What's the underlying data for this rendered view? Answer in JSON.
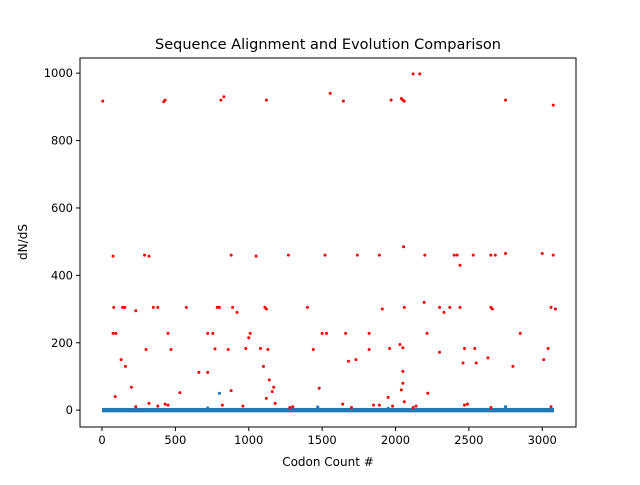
{
  "chart_data": {
    "type": "scatter",
    "title": "Sequence Alignment and Evolution Comparison",
    "xlabel": "Codon Count #",
    "ylabel": "dN/dS",
    "xlim": [
      -150,
      3230
    ],
    "ylim": [
      -50,
      1045
    ],
    "xticks": [
      0,
      500,
      1000,
      1500,
      2000,
      2500,
      3000
    ],
    "yticks": [
      0,
      200,
      400,
      600,
      800,
      1000
    ],
    "grid": false,
    "colors": {
      "baseline": "#1f77b4",
      "highlight": "#ff0000"
    },
    "baseline_series": {
      "x_start": 0,
      "x_end": 3080,
      "y_typical": 0,
      "outliers": [
        {
          "x": 800,
          "y": 50
        },
        {
          "x": 1470,
          "y": 9
        },
        {
          "x": 2750,
          "y": 10
        },
        {
          "x": 720,
          "y": 6
        },
        {
          "x": 1950,
          "y": 5
        }
      ]
    },
    "highlight_points": [
      {
        "x": 5,
        "y": 917
      },
      {
        "x": 420,
        "y": 915
      },
      {
        "x": 430,
        "y": 920
      },
      {
        "x": 810,
        "y": 920
      },
      {
        "x": 830,
        "y": 930
      },
      {
        "x": 1120,
        "y": 920
      },
      {
        "x": 1555,
        "y": 940
      },
      {
        "x": 1645,
        "y": 917
      },
      {
        "x": 1970,
        "y": 920
      },
      {
        "x": 2040,
        "y": 925
      },
      {
        "x": 2050,
        "y": 920
      },
      {
        "x": 2060,
        "y": 917
      },
      {
        "x": 2120,
        "y": 998
      },
      {
        "x": 2165,
        "y": 998
      },
      {
        "x": 2750,
        "y": 920
      },
      {
        "x": 3075,
        "y": 905
      },
      {
        "x": 75,
        "y": 457
      },
      {
        "x": 290,
        "y": 460
      },
      {
        "x": 320,
        "y": 457
      },
      {
        "x": 880,
        "y": 460
      },
      {
        "x": 1050,
        "y": 457
      },
      {
        "x": 1270,
        "y": 460
      },
      {
        "x": 1520,
        "y": 460
      },
      {
        "x": 1740,
        "y": 460
      },
      {
        "x": 1890,
        "y": 460
      },
      {
        "x": 2055,
        "y": 485
      },
      {
        "x": 2200,
        "y": 460
      },
      {
        "x": 2400,
        "y": 460
      },
      {
        "x": 2420,
        "y": 460
      },
      {
        "x": 2440,
        "y": 430
      },
      {
        "x": 2530,
        "y": 460
      },
      {
        "x": 2650,
        "y": 460
      },
      {
        "x": 2680,
        "y": 460
      },
      {
        "x": 2750,
        "y": 465
      },
      {
        "x": 3000,
        "y": 465
      },
      {
        "x": 3075,
        "y": 460
      },
      {
        "x": 80,
        "y": 305
      },
      {
        "x": 140,
        "y": 305
      },
      {
        "x": 155,
        "y": 305
      },
      {
        "x": 230,
        "y": 295
      },
      {
        "x": 350,
        "y": 305
      },
      {
        "x": 380,
        "y": 305
      },
      {
        "x": 575,
        "y": 305
      },
      {
        "x": 785,
        "y": 305
      },
      {
        "x": 800,
        "y": 305
      },
      {
        "x": 890,
        "y": 305
      },
      {
        "x": 920,
        "y": 290
      },
      {
        "x": 1110,
        "y": 305
      },
      {
        "x": 1120,
        "y": 300
      },
      {
        "x": 1400,
        "y": 305
      },
      {
        "x": 1910,
        "y": 300
      },
      {
        "x": 2060,
        "y": 305
      },
      {
        "x": 2195,
        "y": 320
      },
      {
        "x": 2300,
        "y": 305
      },
      {
        "x": 2330,
        "y": 290
      },
      {
        "x": 2370,
        "y": 305
      },
      {
        "x": 2440,
        "y": 305
      },
      {
        "x": 2650,
        "y": 305
      },
      {
        "x": 2660,
        "y": 300
      },
      {
        "x": 3060,
        "y": 305
      },
      {
        "x": 3090,
        "y": 300
      },
      {
        "x": 75,
        "y": 228
      },
      {
        "x": 95,
        "y": 228
      },
      {
        "x": 450,
        "y": 228
      },
      {
        "x": 720,
        "y": 228
      },
      {
        "x": 755,
        "y": 228
      },
      {
        "x": 1010,
        "y": 228
      },
      {
        "x": 1500,
        "y": 228
      },
      {
        "x": 1530,
        "y": 228
      },
      {
        "x": 1660,
        "y": 228
      },
      {
        "x": 1820,
        "y": 228
      },
      {
        "x": 2215,
        "y": 228
      },
      {
        "x": 2850,
        "y": 228
      },
      {
        "x": 300,
        "y": 180
      },
      {
        "x": 470,
        "y": 180
      },
      {
        "x": 770,
        "y": 182
      },
      {
        "x": 860,
        "y": 180
      },
      {
        "x": 980,
        "y": 183
      },
      {
        "x": 1080,
        "y": 183
      },
      {
        "x": 1130,
        "y": 180
      },
      {
        "x": 1440,
        "y": 180
      },
      {
        "x": 1820,
        "y": 180
      },
      {
        "x": 1960,
        "y": 183
      },
      {
        "x": 2030,
        "y": 195
      },
      {
        "x": 2050,
        "y": 185
      },
      {
        "x": 2300,
        "y": 172
      },
      {
        "x": 2470,
        "y": 183
      },
      {
        "x": 2540,
        "y": 183
      },
      {
        "x": 3040,
        "y": 183
      },
      {
        "x": 130,
        "y": 150
      },
      {
        "x": 1680,
        "y": 145
      },
      {
        "x": 1730,
        "y": 150
      },
      {
        "x": 2460,
        "y": 140
      },
      {
        "x": 2550,
        "y": 140
      },
      {
        "x": 2630,
        "y": 155
      },
      {
        "x": 3010,
        "y": 150
      },
      {
        "x": 160,
        "y": 130
      },
      {
        "x": 1000,
        "y": 215
      },
      {
        "x": 2800,
        "y": 130
      },
      {
        "x": 2050,
        "y": 115
      },
      {
        "x": 660,
        "y": 112
      },
      {
        "x": 720,
        "y": 112
      },
      {
        "x": 1100,
        "y": 130
      },
      {
        "x": 1140,
        "y": 90
      },
      {
        "x": 2050,
        "y": 80
      },
      {
        "x": 200,
        "y": 68
      },
      {
        "x": 1170,
        "y": 68
      },
      {
        "x": 1160,
        "y": 55
      },
      {
        "x": 1480,
        "y": 65
      },
      {
        "x": 530,
        "y": 52
      },
      {
        "x": 880,
        "y": 58
      },
      {
        "x": 2220,
        "y": 50
      },
      {
        "x": 2040,
        "y": 60
      },
      {
        "x": 90,
        "y": 40
      },
      {
        "x": 1120,
        "y": 35
      },
      {
        "x": 1950,
        "y": 38
      },
      {
        "x": 320,
        "y": 20
      },
      {
        "x": 430,
        "y": 18
      },
      {
        "x": 1180,
        "y": 20
      },
      {
        "x": 1640,
        "y": 18
      },
      {
        "x": 1850,
        "y": 15
      },
      {
        "x": 1890,
        "y": 15
      },
      {
        "x": 2060,
        "y": 25
      },
      {
        "x": 2490,
        "y": 18
      },
      {
        "x": 230,
        "y": 10
      },
      {
        "x": 380,
        "y": 12
      },
      {
        "x": 960,
        "y": 12
      },
      {
        "x": 1300,
        "y": 10
      },
      {
        "x": 1980,
        "y": 12
      },
      {
        "x": 2140,
        "y": 12
      },
      {
        "x": 2470,
        "y": 15
      },
      {
        "x": 3060,
        "y": 10
      },
      {
        "x": 450,
        "y": 15
      },
      {
        "x": 820,
        "y": 15
      },
      {
        "x": 1280,
        "y": 8
      },
      {
        "x": 1700,
        "y": 8
      },
      {
        "x": 2120,
        "y": 8
      },
      {
        "x": 2650,
        "y": 8
      }
    ]
  }
}
